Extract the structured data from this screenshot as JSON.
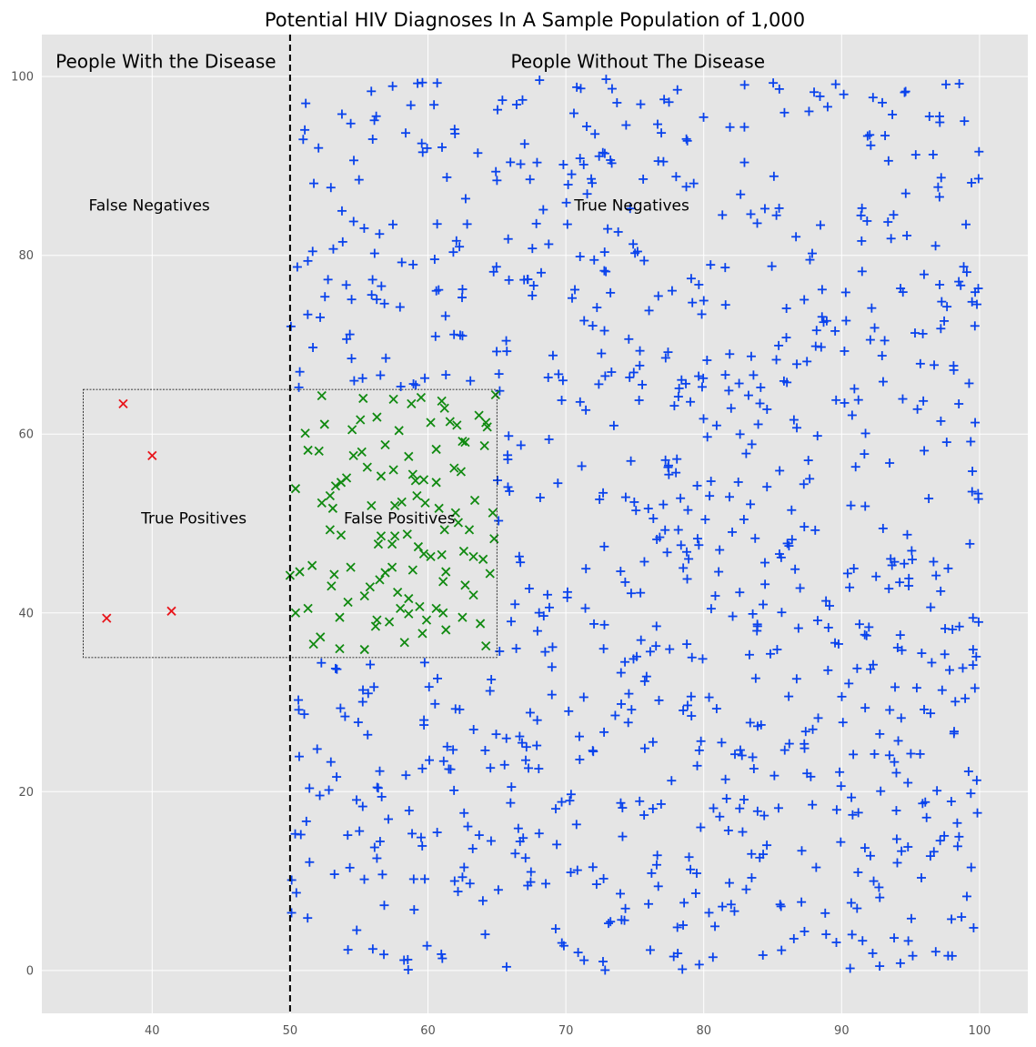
{
  "chart_data": {
    "type": "scatter",
    "title": "Potential HIV Diagnoses In A Sample Population of 1,000",
    "xlabel": "",
    "ylabel": "",
    "xlim": [
      32,
      103.5
    ],
    "ylim": [
      -4.8,
      104.7
    ],
    "xticks": [
      40,
      50,
      60,
      70,
      80,
      90,
      100
    ],
    "yticks": [
      0,
      20,
      40,
      60,
      80,
      100
    ],
    "grid": true,
    "divider_x": 50,
    "box": {
      "x0": 35,
      "x1": 65,
      "y0": 35,
      "y1": 65
    },
    "annotations": [
      {
        "id": "people-with",
        "text": "People With the Disease",
        "x": 33,
        "y": 101,
        "size": "large"
      },
      {
        "id": "people-without",
        "text": "People Without The Disease",
        "x": 66,
        "y": 101,
        "size": "large"
      },
      {
        "id": "false-negatives",
        "text": "False Negatives",
        "x": 35.4,
        "y": 85,
        "size": "medium"
      },
      {
        "id": "true-negatives",
        "text": "True Negatives",
        "x": 70.6,
        "y": 85,
        "size": "medium"
      },
      {
        "id": "true-positives",
        "text": "True Positives",
        "x": 39.2,
        "y": 50,
        "size": "medium"
      },
      {
        "id": "false-positives",
        "text": "False Positives",
        "x": 53.9,
        "y": 50,
        "size": "medium"
      }
    ],
    "colors": {
      "negatives": "#0a43ec",
      "false_positives": "#118a11",
      "true_positives": "#e8151b",
      "background": "#e5e5e5",
      "grid": "#ffffff"
    },
    "series": [
      {
        "id": "true-positives",
        "marker": "x",
        "color": "#e8151b",
        "points": [
          [
            37.9,
            63.4
          ],
          [
            40.0,
            57.6
          ],
          [
            36.7,
            39.4
          ],
          [
            41.4,
            40.2
          ]
        ]
      },
      {
        "id": "false-positives",
        "marker": "x",
        "color": "#118a11",
        "points": [
          [
            52.3,
            64.3
          ],
          [
            55.3,
            64.0
          ],
          [
            57.5,
            63.9
          ],
          [
            58.8,
            63.4
          ],
          [
            59.5,
            64.1
          ],
          [
            61.0,
            63.7
          ],
          [
            61.2,
            62.9
          ],
          [
            64.9,
            64.4
          ],
          [
            51.1,
            60.1
          ],
          [
            52.5,
            61.1
          ],
          [
            54.5,
            60.5
          ],
          [
            55.1,
            61.6
          ],
          [
            56.3,
            61.9
          ],
          [
            57.9,
            60.4
          ],
          [
            60.2,
            61.3
          ],
          [
            61.6,
            61.4
          ],
          [
            62.1,
            61.0
          ],
          [
            63.7,
            62.1
          ],
          [
            64.2,
            61.3
          ],
          [
            51.3,
            58.2
          ],
          [
            52.1,
            58.1
          ],
          [
            54.6,
            57.6
          ],
          [
            55.2,
            58.0
          ],
          [
            56.9,
            58.8
          ],
          [
            58.6,
            57.5
          ],
          [
            60.6,
            58.3
          ],
          [
            62.5,
            59.2
          ],
          [
            62.7,
            59.1
          ],
          [
            64.3,
            60.8
          ],
          [
            64.1,
            58.7
          ],
          [
            53.3,
            54.2
          ],
          [
            53.7,
            54.6
          ],
          [
            54.1,
            55.1
          ],
          [
            55.6,
            56.3
          ],
          [
            56.6,
            55.3
          ],
          [
            57.5,
            56.0
          ],
          [
            58.9,
            55.5
          ],
          [
            59.1,
            54.8
          ],
          [
            59.7,
            54.9
          ],
          [
            60.6,
            54.6
          ],
          [
            61.9,
            56.2
          ],
          [
            62.4,
            55.8
          ],
          [
            50.4,
            53.9
          ],
          [
            52.3,
            52.3
          ],
          [
            52.9,
            53.1
          ],
          [
            53.1,
            51.7
          ],
          [
            55.9,
            52.0
          ],
          [
            57.6,
            52.0
          ],
          [
            58.1,
            52.4
          ],
          [
            59.2,
            53.1
          ],
          [
            59.8,
            52.3
          ],
          [
            60.8,
            51.7
          ],
          [
            62.0,
            51.2
          ],
          [
            63.4,
            52.6
          ],
          [
            64.7,
            51.2
          ],
          [
            52.9,
            49.3
          ],
          [
            53.7,
            48.7
          ],
          [
            56.6,
            48.6
          ],
          [
            57.6,
            48.6
          ],
          [
            58.5,
            48.8
          ],
          [
            59.3,
            47.4
          ],
          [
            61.2,
            49.3
          ],
          [
            62.2,
            50.1
          ],
          [
            63.0,
            49.3
          ],
          [
            64.8,
            48.3
          ],
          [
            56.4,
            47.7
          ],
          [
            57.4,
            47.7
          ],
          [
            59.7,
            46.6
          ],
          [
            60.2,
            46.3
          ],
          [
            61.0,
            46.5
          ],
          [
            62.6,
            46.9
          ],
          [
            63.3,
            46.3
          ],
          [
            64.0,
            46.0
          ],
          [
            50.0,
            44.2
          ],
          [
            50.7,
            44.6
          ],
          [
            51.6,
            45.3
          ],
          [
            53.2,
            44.3
          ],
          [
            54.4,
            45.1
          ],
          [
            56.9,
            44.5
          ],
          [
            57.4,
            45.1
          ],
          [
            58.9,
            44.8
          ],
          [
            61.3,
            44.6
          ],
          [
            61.1,
            43.5
          ],
          [
            62.7,
            43.1
          ],
          [
            64.5,
            44.4
          ],
          [
            53.0,
            43.0
          ],
          [
            54.2,
            41.2
          ],
          [
            55.4,
            41.9
          ],
          [
            55.8,
            42.9
          ],
          [
            56.5,
            43.7
          ],
          [
            57.8,
            42.3
          ],
          [
            58.6,
            41.6
          ],
          [
            59.4,
            40.7
          ],
          [
            60.6,
            40.5
          ],
          [
            63.3,
            42.0
          ],
          [
            50.4,
            40.0
          ],
          [
            51.3,
            40.5
          ],
          [
            53.6,
            39.5
          ],
          [
            56.3,
            39.2
          ],
          [
            57.2,
            39.0
          ],
          [
            58.0,
            40.5
          ],
          [
            58.6,
            39.9
          ],
          [
            59.9,
            39.2
          ],
          [
            61.1,
            40.0
          ],
          [
            62.5,
            39.5
          ],
          [
            63.8,
            38.8
          ],
          [
            51.7,
            36.5
          ],
          [
            52.2,
            37.3
          ],
          [
            53.6,
            36.0
          ],
          [
            55.4,
            35.9
          ],
          [
            56.2,
            38.5
          ],
          [
            58.3,
            36.7
          ],
          [
            59.6,
            37.7
          ],
          [
            61.3,
            38.1
          ],
          [
            64.2,
            36.3
          ]
        ]
      },
      {
        "id": "negatives",
        "marker": "plus",
        "generated": true,
        "count": 895,
        "x_range": [
          50,
          100
        ],
        "y_range": [
          0,
          100
        ],
        "color": "#0a43ec"
      }
    ]
  }
}
